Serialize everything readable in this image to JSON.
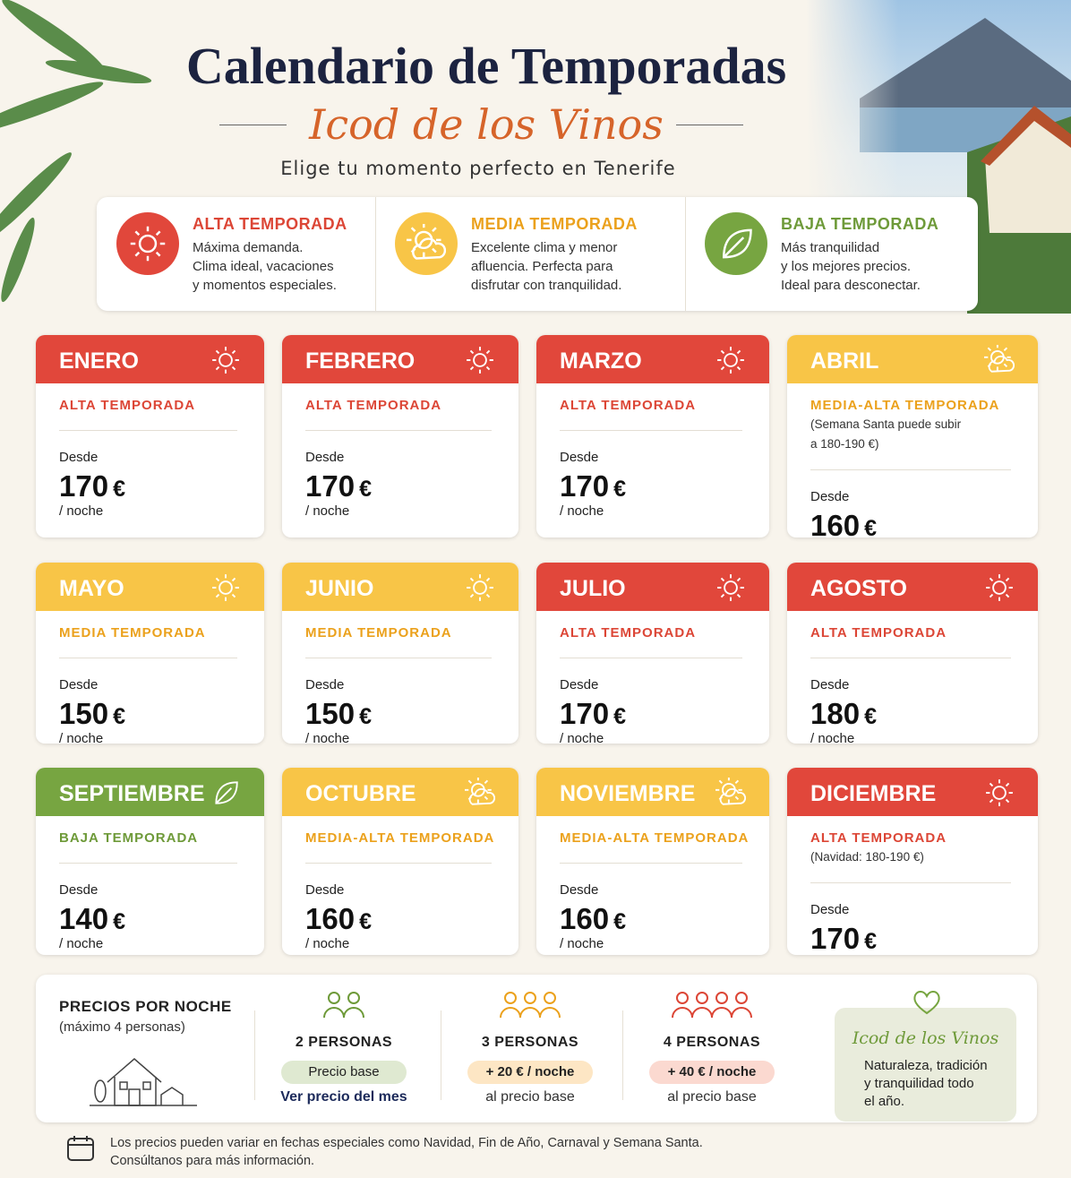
{
  "colors": {
    "alta": {
      "head": "#e1473b",
      "text": "#dc4636",
      "soft": "#fbd9d0"
    },
    "media": {
      "head": "#f8c547",
      "text": "#eba11c",
      "soft": "#fde6c4"
    },
    "baja": {
      "head": "#77a541",
      "text": "#6e9a39",
      "soft": "#dfe9d1"
    }
  },
  "header": {
    "title": "Calendario de Temporadas",
    "subtitle": "Icod de los Vinos",
    "tagline": "Elige tu momento perfecto en Tenerife"
  },
  "legend": [
    {
      "level": "alta",
      "icon": "sun",
      "title": "ALTA TEMPORADA",
      "text": [
        "Máxima demanda.",
        "Clima ideal, vacaciones",
        "y momentos especiales."
      ]
    },
    {
      "level": "media",
      "icon": "cloud",
      "title": "MEDIA TEMPORADA",
      "text": [
        "Excelente clima y menor",
        "afluencia. Perfecta para",
        "disfrutar con tranquilidad."
      ]
    },
    {
      "level": "baja",
      "icon": "leaf",
      "title": "BAJA TEMPORADA",
      "text": [
        "Más tranquilidad",
        "y los mejores precios.",
        "Ideal para desconectar."
      ]
    }
  ],
  "months": {
    "from": "Desde",
    "currency": "€",
    "per_night": "/ noche",
    "items": [
      {
        "name": "ENERO",
        "level": "alta",
        "icon": "sun",
        "season": "ALTA TEMPORADA",
        "price": "170"
      },
      {
        "name": "FEBRERO",
        "level": "alta",
        "icon": "sun",
        "season": "ALTA TEMPORADA",
        "price": "170"
      },
      {
        "name": "MARZO",
        "level": "alta",
        "icon": "sun",
        "season": "ALTA TEMPORADA",
        "price": "170"
      },
      {
        "name": "ABRIL",
        "level": "media",
        "icon": "cloud",
        "season": "MEDIA-ALTA TEMPORADA",
        "note": [
          "(Semana Santa puede subir",
          "a 180-190 €)"
        ],
        "price": "160"
      },
      {
        "name": "MAYO",
        "level": "media",
        "icon": "sun",
        "season": "MEDIA TEMPORADA",
        "price": "150"
      },
      {
        "name": "JUNIO",
        "level": "media",
        "icon": "sun",
        "season": "MEDIA TEMPORADA",
        "price": "150"
      },
      {
        "name": "JULIO",
        "level": "alta",
        "icon": "sun",
        "season": "ALTA TEMPORADA",
        "price": "170"
      },
      {
        "name": "AGOSTO",
        "level": "alta",
        "icon": "sun",
        "season": "ALTA TEMPORADA",
        "price": "180"
      },
      {
        "name": "SEPTIEMBRE",
        "level": "baja",
        "icon": "leaf",
        "season": "BAJA TEMPORADA",
        "price": "140"
      },
      {
        "name": "OCTUBRE",
        "level": "media",
        "icon": "cloud",
        "season": "MEDIA-ALTA TEMPORADA",
        "price": "160"
      },
      {
        "name": "NOVIEMBRE",
        "level": "media",
        "icon": "cloud",
        "season": "MEDIA-ALTA TEMPORADA",
        "price": "160"
      },
      {
        "name": "DICIEMBRE",
        "level": "alta",
        "icon": "sun",
        "season": "ALTA TEMPORADA",
        "note": [
          "(Navidad: 180-190 €)"
        ],
        "price": "170"
      }
    ]
  },
  "pricing": {
    "title": "PRECIOS POR NOCHE",
    "subtitle": "(máximo 4 personas)",
    "options": [
      {
        "level": "baja",
        "people": "2 PERSONAS",
        "badge": "Precio base",
        "text": "Ver precio del mes"
      },
      {
        "level": "media",
        "people": "3 PERSONAS",
        "badge": "+ 20 € / noche",
        "text": "al precio base"
      },
      {
        "level": "alta",
        "people": "4 PERSONAS",
        "badge": "+ 40 € / noche",
        "text": "al precio base"
      }
    ],
    "brand": {
      "name": "Icod de los Vinos",
      "text": [
        "Naturaleza, tradición",
        "y tranquilidad todo",
        "el año."
      ]
    }
  },
  "footer": [
    "Los precios pueden variar en fechas especiales como Navidad, Fin de Año, Carnaval y Semana Santa.",
    "Consúltanos para más información."
  ]
}
